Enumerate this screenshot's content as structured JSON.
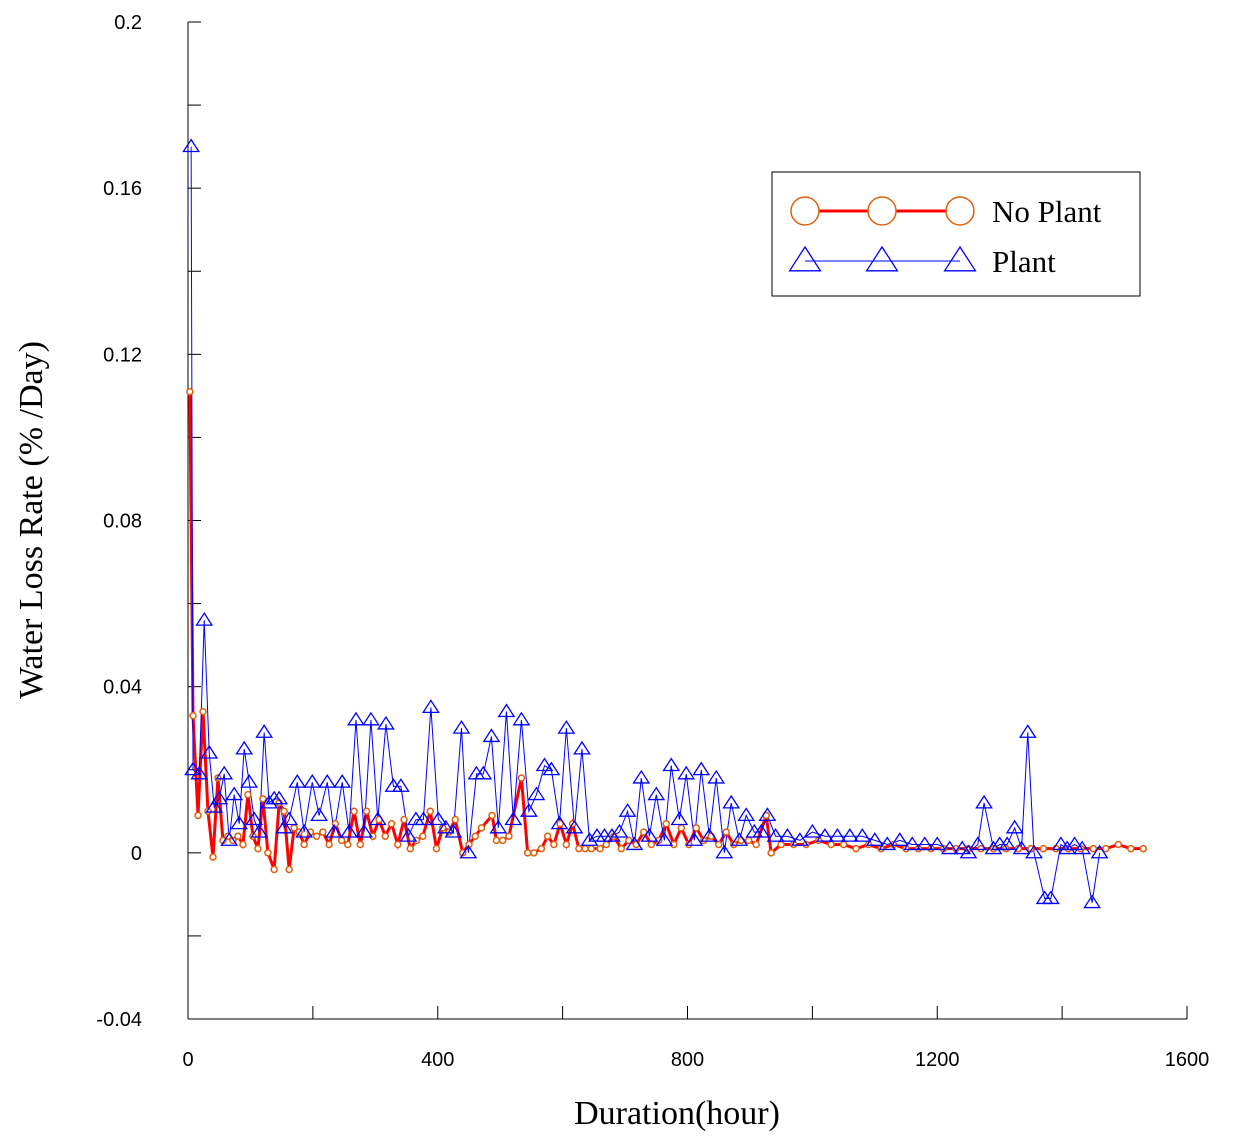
{
  "chart_data": {
    "type": "line",
    "xlabel": "Duration(hour)",
    "ylabel": "Water Loss Rate (% /Day)",
    "xlim": [
      0,
      1600
    ],
    "xticks": [
      0,
      400,
      800,
      1200,
      1600
    ],
    "xminorticks": [
      200,
      600,
      1000,
      1400
    ],
    "ylim": [
      -0.04,
      0.2
    ],
    "yticks": [
      -0.04,
      0,
      0.04,
      0.08,
      0.12,
      0.16,
      0.2
    ],
    "yminorticks": [
      -0.02,
      0.02,
      0.06,
      0.1,
      0.14,
      0.18
    ],
    "legend": "upper right",
    "series": [
      {
        "name": "No Plant",
        "color": "#ff0000",
        "marker": "circle",
        "marker_color": "#e0600a",
        "x": [
          3,
          8,
          16,
          24,
          32,
          40,
          48,
          56,
          64,
          72,
          80,
          88,
          96,
          104,
          112,
          120,
          128,
          138,
          146,
          154,
          162,
          170,
          178,
          186,
          196,
          206,
          216,
          226,
          236,
          246,
          256,
          266,
          276,
          286,
          296,
          306,
          316,
          326,
          336,
          346,
          356,
          366,
          376,
          388,
          398,
          408,
          418,
          428,
          440,
          450,
          460,
          470,
          487,
          494,
          504,
          514,
          534,
          544,
          554,
          566,
          576,
          586,
          596,
          606,
          616,
          626,
          636,
          646,
          660,
          670,
          682,
          694,
          706,
          718,
          730,
          742,
          754,
          766,
          778,
          790,
          802,
          814,
          826,
          838,
          850,
          862,
          874,
          886,
          898,
          910,
          926,
          934,
          950,
          970,
          990,
          1010,
          1030,
          1050,
          1070,
          1090,
          1110,
          1130,
          1150,
          1170,
          1190,
          1210,
          1230,
          1250,
          1270,
          1290,
          1310,
          1330,
          1350,
          1370,
          1390,
          1410,
          1430,
          1450,
          1470,
          1490,
          1510,
          1530
        ],
        "values": [
          0.111,
          0.033,
          0.009,
          0.034,
          0.01,
          -0.001,
          0.018,
          0.003,
          0.004,
          0.003,
          0.004,
          0.002,
          0.014,
          0.004,
          0.001,
          0.013,
          0.0,
          -0.004,
          0.012,
          0.01,
          -0.004,
          0.006,
          0.005,
          0.002,
          0.005,
          0.004,
          0.005,
          0.002,
          0.007,
          0.003,
          0.002,
          0.01,
          0.002,
          0.01,
          0.004,
          0.008,
          0.004,
          0.007,
          0.002,
          0.008,
          0.001,
          0.003,
          0.004,
          0.01,
          0.001,
          0.006,
          0.005,
          0.008,
          0.0,
          0.002,
          0.004,
          0.006,
          0.009,
          0.003,
          0.003,
          0.004,
          0.018,
          0.0,
          0.0,
          0.001,
          0.004,
          0.002,
          0.007,
          0.002,
          0.007,
          0.001,
          0.001,
          0.001,
          0.001,
          0.002,
          0.004,
          0.001,
          0.003,
          0.002,
          0.005,
          0.002,
          0.003,
          0.007,
          0.002,
          0.006,
          0.002,
          0.006,
          0.003,
          0.004,
          0.002,
          0.005,
          0.002,
          0.003,
          0.003,
          0.002,
          0.009,
          0.0,
          0.002,
          0.002,
          0.002,
          0.003,
          0.002,
          0.002,
          0.001,
          0.002,
          0.001,
          0.002,
          0.001,
          0.001,
          0.001,
          0.001,
          0.001,
          0.001,
          0.001,
          0.001,
          0.001,
          0.001,
          0.001,
          0.001,
          0.001,
          0.001,
          0.001,
          0.001,
          0.001,
          0.002,
          0.001,
          0.001
        ]
      },
      {
        "name": "Plant",
        "color": "#0000ff",
        "marker": "triangle",
        "marker_color": "#0000ff",
        "x": [
          5,
          8,
          18,
          26,
          34,
          42,
          50,
          58,
          66,
          74,
          82,
          90,
          98,
          106,
          114,
          122,
          130,
          138,
          146,
          154,
          162,
          175,
          186,
          199,
          210,
          223,
          234,
          247,
          258,
          269,
          282,
          293,
          304,
          317,
          329,
          341,
          353,
          365,
          377,
          389,
          401,
          413,
          425,
          438,
          449,
          462,
          473,
          486,
          497,
          510,
          521,
          534,
          546,
          558,
          571,
          582,
          595,
          606,
          619,
          631,
          643,
          655,
          667,
          679,
          691,
          704,
          715,
          726,
          739,
          750,
          763,
          774,
          787,
          798,
          811,
          822,
          835,
          846,
          859,
          870,
          883,
          894,
          907,
          918,
          928,
          941,
          960,
          980,
          1000,
          1020,
          1040,
          1060,
          1080,
          1100,
          1120,
          1140,
          1160,
          1180,
          1200,
          1220,
          1240,
          1250,
          1265,
          1275,
          1290,
          1300,
          1312,
          1324,
          1335,
          1345,
          1355,
          1372,
          1382,
          1398,
          1408,
          1420,
          1432,
          1448,
          1460
        ],
        "values": [
          0.17,
          0.02,
          0.019,
          0.056,
          0.024,
          0.011,
          0.013,
          0.019,
          0.003,
          0.014,
          0.007,
          0.025,
          0.017,
          0.008,
          0.005,
          0.029,
          0.012,
          0.013,
          0.013,
          0.006,
          0.008,
          0.017,
          0.005,
          0.017,
          0.009,
          0.017,
          0.005,
          0.017,
          0.005,
          0.032,
          0.005,
          0.032,
          0.008,
          0.031,
          0.016,
          0.016,
          0.004,
          0.008,
          0.008,
          0.035,
          0.008,
          0.006,
          0.005,
          0.03,
          0.0,
          0.019,
          0.019,
          0.028,
          0.006,
          0.034,
          0.008,
          0.032,
          0.01,
          0.014,
          0.021,
          0.02,
          0.007,
          0.03,
          0.006,
          0.025,
          0.003,
          0.004,
          0.004,
          0.004,
          0.005,
          0.01,
          0.002,
          0.018,
          0.004,
          0.014,
          0.003,
          0.021,
          0.008,
          0.019,
          0.003,
          0.02,
          0.004,
          0.018,
          0.0,
          0.012,
          0.003,
          0.009,
          0.005,
          0.005,
          0.009,
          0.004,
          0.004,
          0.003,
          0.005,
          0.004,
          0.004,
          0.004,
          0.004,
          0.003,
          0.002,
          0.003,
          0.002,
          0.002,
          0.002,
          0.001,
          0.001,
          0.0,
          0.002,
          0.012,
          0.001,
          0.002,
          0.002,
          0.006,
          0.001,
          0.029,
          0.0,
          -0.011,
          -0.011,
          0.002,
          0.001,
          0.002,
          0.001,
          -0.012,
          0.0
        ]
      }
    ]
  }
}
